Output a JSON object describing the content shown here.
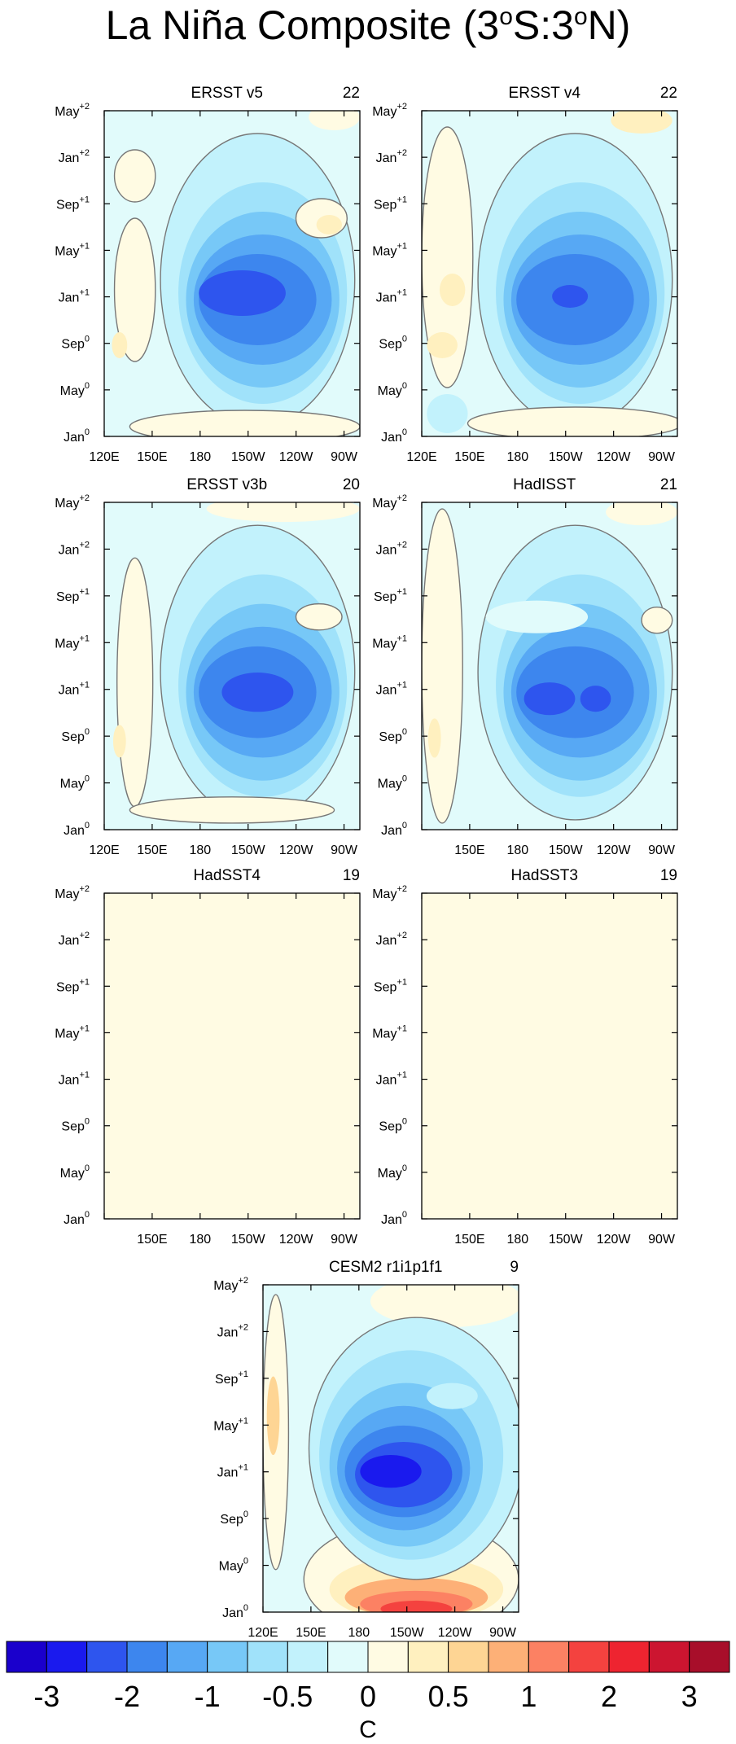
{
  "title": "La Niña Composite (3°S:3°N)",
  "title_parts": {
    "base": "La Niña Composite (3",
    "sup1": "o",
    "mid": "S:3",
    "sup2": "o",
    "end": "N)"
  },
  "y_ticks": [
    {
      "base": "May",
      "sup": "+2"
    },
    {
      "base": "Jan",
      "sup": "+2"
    },
    {
      "base": "Sep",
      "sup": "+1"
    },
    {
      "base": "May",
      "sup": "+1"
    },
    {
      "base": "Jan",
      "sup": "+1"
    },
    {
      "base": "Sep",
      "sup": "0"
    },
    {
      "base": "May",
      "sup": "0"
    },
    {
      "base": "Jan",
      "sup": "0"
    }
  ],
  "x_ticks_full": [
    "120E",
    "150E",
    "180",
    "150W",
    "120W",
    "90W"
  ],
  "x_ticks_no120": [
    "150E",
    "180",
    "150W",
    "120W",
    "90W"
  ],
  "colorbar": {
    "colors": [
      "#1a00cc",
      "#1a1aee",
      "#2e55ee",
      "#3d86ee",
      "#57a8f4",
      "#77c8f7",
      "#a0e2fa",
      "#c2f2fc",
      "#e1fbfb",
      "#fffbe3",
      "#fff0bf",
      "#fed594",
      "#fdb077",
      "#fc8163",
      "#f4423f",
      "#ee2430",
      "#cc1530",
      "#a80e2a"
    ],
    "labels": [
      "-3",
      "-2",
      "-1",
      "-0.5",
      "0",
      "0.5",
      "1",
      "2",
      "3"
    ],
    "units": "C"
  },
  "chart_data": [
    {
      "type": "heatmap",
      "name": "ERSST v5",
      "count": "22",
      "xlim": [
        "120E",
        "80W"
      ],
      "ylim": [
        "Jan0",
        "May+2"
      ],
      "min_anomaly": -2,
      "core": {
        "lon": "155W",
        "time": "Dec0"
      },
      "note": "cool tongue -0.5 to -2 C, warm patches near 130E and 100W"
    },
    {
      "type": "heatmap",
      "name": "ERSST v4",
      "count": "22",
      "xlim": [
        "120E",
        "80W"
      ],
      "ylim": [
        "Jan0",
        "May+2"
      ],
      "min_anomaly": -2,
      "core": {
        "lon": "145W",
        "time": "Jan+1"
      }
    },
    {
      "type": "heatmap",
      "name": "ERSST v3b",
      "count": "20",
      "xlim": [
        "120E",
        "80W"
      ],
      "ylim": [
        "Jan0",
        "May+2"
      ],
      "min_anomaly": -2,
      "core": {
        "lon": "145W",
        "time": "Dec0"
      }
    },
    {
      "type": "heatmap",
      "name": "HadISST",
      "count": "21",
      "xlim": [
        "120E",
        "80W"
      ],
      "ylim": [
        "Jan0",
        "May+2"
      ],
      "min_anomaly": -2,
      "core": {
        "lon": "150W",
        "time": "Dec0"
      }
    },
    {
      "type": "heatmap",
      "name": "HadSST4",
      "count": "19",
      "xlim": [
        "120E",
        "80W"
      ],
      "ylim": [
        "Jan0",
        "May+2"
      ],
      "note": "uniform 0 to 0.5 C field"
    },
    {
      "type": "heatmap",
      "name": "HadSST3",
      "count": "19",
      "xlim": [
        "120E",
        "80W"
      ],
      "ylim": [
        "Jan0",
        "May+2"
      ],
      "note": "uniform 0 to 0.5 C field"
    },
    {
      "type": "heatmap",
      "name": "CESM2 r1i1p1f1",
      "count": "9",
      "xlim": [
        "120E",
        "80W"
      ],
      "ylim": [
        "Jan0",
        "May+2"
      ],
      "min_anomaly": -3,
      "core": {
        "lon": "160W",
        "time": "Dec0"
      },
      "max_anomaly": 2,
      "warm_core": {
        "lon": "150W",
        "time": "Jan0"
      }
    }
  ]
}
